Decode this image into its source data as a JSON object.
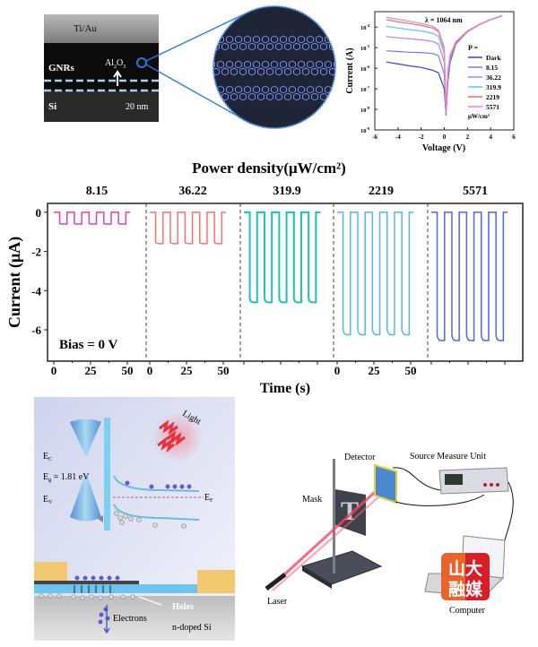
{
  "sem": {
    "labels": {
      "top_metal": "Ti/Au",
      "ribbons": "GNRs",
      "oxide_main": "Al",
      "oxide_sub1": "2",
      "oxide_mid": "O",
      "oxide_sub2": "3",
      "substrate": "Si",
      "scale_bar": "20 nm"
    }
  },
  "iv_chart": {
    "type": "line",
    "title": "λ = 1064 nm",
    "xlabel": "Voltage (V)",
    "ylabel": "Current (A)",
    "xlim": [
      -6,
      6
    ],
    "ylim_log10": [
      -9,
      -3.25
    ],
    "x_ticks": [
      "-6",
      "-4",
      "-2",
      "0",
      "2",
      "4",
      "6"
    ],
    "y_ticks": [
      {
        "base": "10",
        "exp": "-9"
      },
      {
        "base": "10",
        "exp": "-8"
      },
      {
        "base": "10",
        "exp": "-7"
      },
      {
        "base": "10",
        "exp": "-6"
      },
      {
        "base": "10",
        "exp": "-5"
      },
      {
        "base": "10",
        "exp": "-4"
      }
    ],
    "legend_title": "P =",
    "legend_unit": "μW/cm²",
    "legend_placement": "right",
    "x": [
      -5,
      -4,
      -3,
      -2,
      -1,
      -0.5,
      0,
      0.15,
      0.3,
      0.5,
      1,
      2,
      3,
      4,
      5
    ],
    "series": [
      {
        "name": "Dark",
        "color": "#3a3fd8",
        "values": [
          2e-06,
          1.6e-06,
          1.3e-06,
          1.1e-06,
          8e-07,
          6e-07,
          1e-07,
          5e-09,
          2e-07,
          2e-06,
          1.5e-05,
          6e-05,
          0.00013,
          0.00023,
          0.00035
        ]
      },
      {
        "name": "8.15",
        "color": "#7a78e8",
        "values": [
          7e-06,
          6.5e-06,
          6e-06,
          5.8e-06,
          5.2e-06,
          4e-06,
          5e-07,
          5e-09,
          3e-07,
          2.5e-06,
          1.6e-05,
          6e-05,
          0.00013,
          0.00023,
          0.00035
        ]
      },
      {
        "name": "36.22",
        "color": "#c07ae8",
        "values": [
          3.5e-05,
          3e-05,
          2.7e-05,
          2.4e-05,
          2e-05,
          1.5e-05,
          2e-06,
          6e-09,
          4e-07,
          3e-06,
          1.7e-05,
          6e-05,
          0.00013,
          0.00023,
          0.00035
        ]
      },
      {
        "name": "319.9",
        "color": "#58c8f0",
        "values": [
          0.00011,
          9e-05,
          7.5e-05,
          6.5e-05,
          5e-05,
          3.5e-05,
          5e-06,
          6e-09,
          5e-07,
          3.5e-06,
          1.8e-05,
          6.2e-05,
          0.00013,
          0.00023,
          0.00035
        ]
      },
      {
        "name": "2219",
        "color": "#e07070",
        "values": [
          0.00023,
          0.00018,
          0.00015,
          0.00012,
          9e-05,
          6e-05,
          8e-06,
          7e-09,
          6e-07,
          4e-06,
          1.9e-05,
          6.3e-05,
          0.00013,
          0.00023,
          0.00035
        ]
      },
      {
        "name": "5571",
        "color": "#f080c0",
        "values": [
          0.0003,
          0.00024,
          0.00019,
          0.00015,
          0.00011,
          7e-05,
          1e-05,
          7e-09,
          7e-07,
          4.5e-06,
          2e-05,
          6.5e-05,
          0.000135,
          0.000235,
          0.00036
        ]
      }
    ]
  },
  "chart_data": {
    "type": "line",
    "title": "Power density(μW/cm²)",
    "xlabel": "Time (s)",
    "ylabel": "Current (μA)",
    "annotation": "Bias = 0 V",
    "ylim": [
      -7.6,
      0.45
    ],
    "y_ticks": [
      "0",
      "-2",
      "-4",
      "-6"
    ],
    "y_tick_values": [
      0,
      -2,
      -4,
      -6
    ],
    "grid": false,
    "light_on_intervals_s": [
      [
        4,
        9
      ],
      [
        14,
        19
      ],
      [
        24,
        29
      ],
      [
        34,
        39
      ],
      [
        44,
        49
      ]
    ],
    "trace_duration_s": 52,
    "panels": [
      {
        "name": "8.15",
        "color": "#e040b8",
        "on_current": -0.6,
        "off_current": 0,
        "x_tick_labels": [
          "0",
          "25",
          "50"
        ]
      },
      {
        "name": "36.22",
        "color": "#f07474",
        "on_current": -1.6,
        "off_current": 0,
        "x_tick_labels": [
          "0",
          "25",
          "50"
        ]
      },
      {
        "name": "319.9",
        "color": "#1fc0b4",
        "on_current": -4.6,
        "off_current": 0,
        "x_tick_labels": []
      },
      {
        "name": "2219",
        "color": "#52b6f0",
        "on_current": -6.25,
        "off_current": 0,
        "x_tick_labels": [
          "0",
          "25",
          "50"
        ]
      },
      {
        "name": "5571",
        "color": "#5566e0",
        "on_current": -6.55,
        "off_current": 0,
        "x_tick_labels": []
      }
    ]
  },
  "band_diagram": {
    "ec": {
      "main": "E",
      "sub": "C"
    },
    "eg": {
      "main": "E",
      "sub": "g",
      "rest": " = 1.81 eV"
    },
    "ev": {
      "main": "E",
      "sub": "V"
    },
    "ef": {
      "main": "E",
      "sub": "F"
    },
    "light": "Light",
    "holes": "Holes",
    "electrons": "Electrons",
    "substrate": "n-doped Si"
  },
  "setup": {
    "detector": "Detector",
    "smu": "Source Measure Unit",
    "mask": "Mask",
    "mask_letter": "T",
    "laser": "Laser",
    "computer": "Computer",
    "watermark": "山大融媒"
  }
}
